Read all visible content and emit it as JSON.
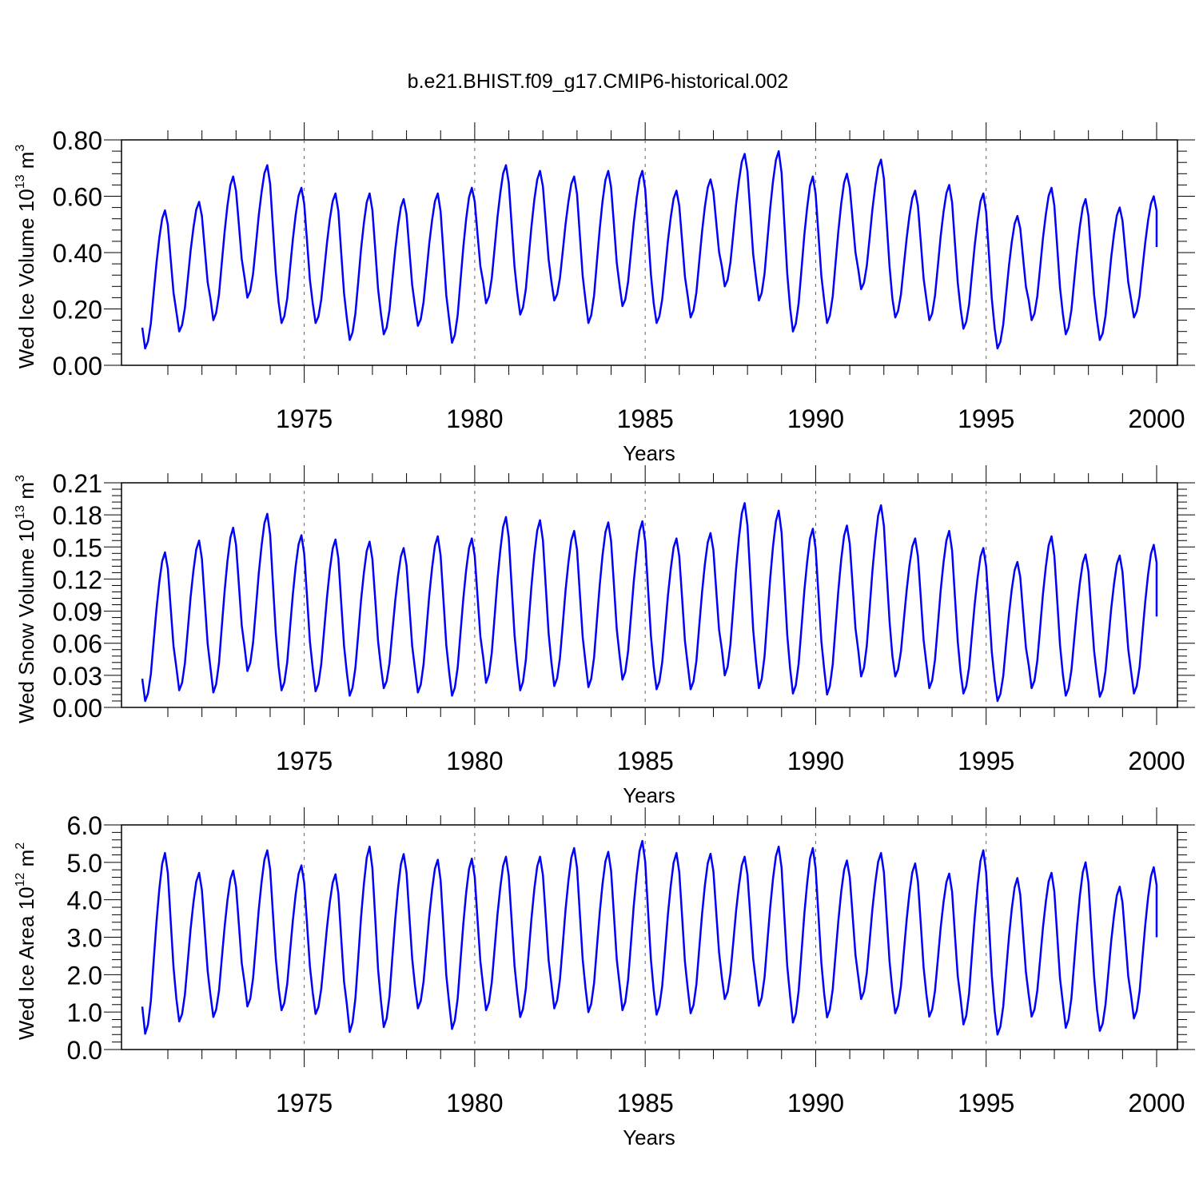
{
  "title": "b.e21.BHIST.f09_g17.CMIP6-historical.002",
  "chart_data": [
    {
      "type": "line",
      "id": "ice-volume",
      "ylabel_main": "Wed Ice Volume 10",
      "ylabel_exp": "13",
      "ylabel_unit": " m",
      "ylabel_unit_exp": "3",
      "xlabel": "Years",
      "xlim": [
        1970.25,
        2000
      ],
      "ylim": [
        0,
        0.8
      ],
      "xticks": [
        1975,
        1980,
        1985,
        1990,
        1995,
        2000
      ],
      "xtick_labels": [
        "1975",
        "1980",
        "1985",
        "1990",
        "1995",
        "2000"
      ],
      "yticks": [
        0,
        0.2,
        0.4,
        0.6,
        0.8
      ],
      "ytick_labels": [
        "0.00",
        "0.20",
        "0.40",
        "0.60",
        "0.80"
      ],
      "grid": "dashed vertical lines at labeled years",
      "line_color": "#0000ff",
      "start_year": 1970.25,
      "peaks": [
        0.55,
        0.58,
        0.67,
        0.71,
        0.63,
        0.61,
        0.61,
        0.59,
        0.61,
        0.63,
        0.71,
        0.69,
        0.67,
        0.69,
        0.69,
        0.62,
        0.66,
        0.75,
        0.76,
        0.67,
        0.68,
        0.73,
        0.62,
        0.64,
        0.61,
        0.53,
        0.63,
        0.59,
        0.56,
        0.6
      ],
      "minima": [
        0.06,
        0.12,
        0.16,
        0.24,
        0.15,
        0.15,
        0.09,
        0.11,
        0.14,
        0.08,
        0.22,
        0.18,
        0.23,
        0.15,
        0.21,
        0.15,
        0.17,
        0.28,
        0.23,
        0.12,
        0.15,
        0.27,
        0.17,
        0.16,
        0.13,
        0.06,
        0.16,
        0.11,
        0.09,
        0.17
      ],
      "end_value": 0.42
    },
    {
      "type": "line",
      "id": "snow-volume",
      "ylabel_main": "Wed Snow Volume 10",
      "ylabel_exp": "13",
      "ylabel_unit": " m",
      "ylabel_unit_exp": "3",
      "xlabel": "Years",
      "xlim": [
        1970.25,
        2000
      ],
      "ylim": [
        0,
        0.21
      ],
      "xticks": [
        1975,
        1980,
        1985,
        1990,
        1995,
        2000
      ],
      "xtick_labels": [
        "1975",
        "1980",
        "1985",
        "1990",
        "1995",
        "2000"
      ],
      "yticks": [
        0,
        0.03,
        0.06,
        0.09,
        0.12,
        0.15,
        0.18,
        0.21
      ],
      "ytick_labels": [
        "0.00",
        "0.03",
        "0.06",
        "0.09",
        "0.12",
        "0.15",
        "0.18",
        "0.21"
      ],
      "grid": "dashed vertical lines at labeled years",
      "line_color": "#0000ff",
      "start_year": 1970.25,
      "peaks": [
        0.145,
        0.156,
        0.168,
        0.181,
        0.161,
        0.157,
        0.155,
        0.149,
        0.16,
        0.158,
        0.178,
        0.175,
        0.165,
        0.173,
        0.174,
        0.158,
        0.163,
        0.191,
        0.184,
        0.167,
        0.17,
        0.189,
        0.158,
        0.165,
        0.149,
        0.136,
        0.16,
        0.143,
        0.142,
        0.152
      ],
      "minima": [
        0.006,
        0.016,
        0.014,
        0.034,
        0.016,
        0.015,
        0.011,
        0.018,
        0.014,
        0.011,
        0.023,
        0.016,
        0.02,
        0.019,
        0.026,
        0.017,
        0.017,
        0.03,
        0.018,
        0.013,
        0.012,
        0.029,
        0.029,
        0.018,
        0.013,
        0.006,
        0.018,
        0.011,
        0.01,
        0.013
      ],
      "end_value": 0.085
    },
    {
      "type": "line",
      "id": "ice-area",
      "ylabel_main": "Wed Ice Area 10",
      "ylabel_exp": "12",
      "ylabel_unit": " m",
      "ylabel_unit_exp": "2",
      "xlabel": "Years",
      "xlim": [
        1970.25,
        2000
      ],
      "ylim": [
        0,
        6
      ],
      "xticks": [
        1975,
        1980,
        1985,
        1990,
        1995,
        2000
      ],
      "xtick_labels": [
        "1975",
        "1980",
        "1985",
        "1990",
        "1995",
        "2000"
      ],
      "yticks": [
        0,
        1,
        2,
        3,
        4,
        5,
        6
      ],
      "ytick_labels": [
        "0.0",
        "1.0",
        "2.0",
        "3.0",
        "4.0",
        "5.0",
        "6.0"
      ],
      "grid": "dashed vertical lines at labeled years",
      "line_color": "#0000ff",
      "start_year": 1970.25,
      "peaks": [
        5.25,
        4.72,
        4.78,
        5.32,
        4.92,
        4.68,
        5.42,
        5.22,
        5.07,
        5.1,
        5.15,
        5.15,
        5.38,
        5.28,
        5.57,
        5.25,
        5.23,
        5.15,
        5.42,
        5.38,
        5.05,
        5.25,
        4.97,
        4.7,
        5.32,
        4.58,
        4.72,
        5.0,
        4.35,
        4.87
      ],
      "minima": [
        0.42,
        0.75,
        0.87,
        1.15,
        1.05,
        0.95,
        0.47,
        0.6,
        1.1,
        0.55,
        1.05,
        0.87,
        1.1,
        1.0,
        1.05,
        0.93,
        0.97,
        1.35,
        1.17,
        0.72,
        0.86,
        1.35,
        0.97,
        0.88,
        0.67,
        0.4,
        0.88,
        0.58,
        0.5,
        0.83
      ],
      "end_value": 3.0
    }
  ]
}
